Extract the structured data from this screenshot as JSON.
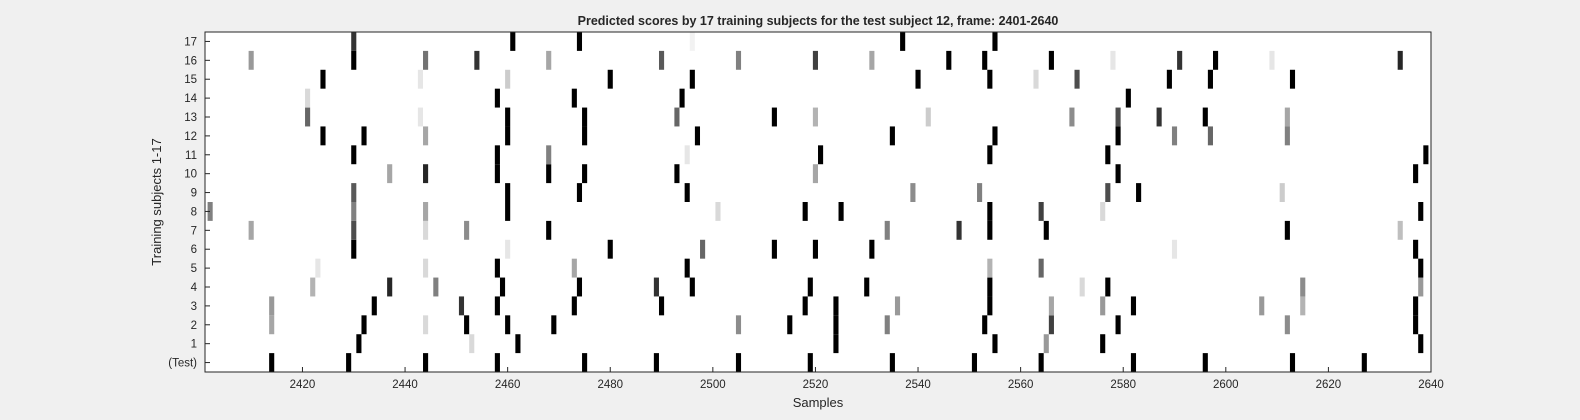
{
  "chart_data": {
    "type": "heatmap",
    "title": "Predicted scores by 17 training subjects for the test subject 12, frame: 2401-2640",
    "xlabel": "Samples",
    "ylabel": "Training subjects 1-17",
    "xlim": [
      2401,
      2640
    ],
    "x_ticks": [
      2420,
      2440,
      2460,
      2480,
      2500,
      2520,
      2540,
      2560,
      2580,
      2600,
      2620,
      2640
    ],
    "y_ticks": [
      "(Test)",
      "1",
      "2",
      "3",
      "4",
      "5",
      "6",
      "7",
      "8",
      "9",
      "10",
      "11",
      "12",
      "13",
      "14",
      "15",
      "16",
      "17"
    ],
    "grid": false,
    "colormap": "gray-inverted",
    "rows": [
      {
        "label": "(Test)",
        "events": [
          [
            2414,
            1
          ],
          [
            2429,
            1
          ],
          [
            2444,
            1
          ],
          [
            2458,
            1
          ],
          [
            2475,
            1
          ],
          [
            2489,
            1
          ],
          [
            2505,
            1
          ],
          [
            2519,
            1
          ],
          [
            2535,
            1
          ],
          [
            2551,
            1
          ],
          [
            2564,
            1
          ],
          [
            2582,
            1
          ],
          [
            2596,
            1
          ],
          [
            2613,
            1
          ],
          [
            2627,
            1
          ]
        ]
      },
      {
        "label": "1",
        "events": [
          [
            2431,
            1
          ],
          [
            2453,
            0.15
          ],
          [
            2462,
            1
          ],
          [
            2524,
            1
          ],
          [
            2555,
            1
          ],
          [
            2565,
            0.4
          ],
          [
            2576,
            1
          ],
          [
            2638,
            1
          ]
        ]
      },
      {
        "label": "2",
        "events": [
          [
            2414,
            0.35
          ],
          [
            2432,
            1
          ],
          [
            2444,
            0.15
          ],
          [
            2452,
            1
          ],
          [
            2460,
            1
          ],
          [
            2469,
            1
          ],
          [
            2505,
            0.45
          ],
          [
            2515,
            1
          ],
          [
            2524,
            1
          ],
          [
            2534,
            0.5
          ],
          [
            2553,
            1
          ],
          [
            2566,
            0.75
          ],
          [
            2579,
            1
          ],
          [
            2612,
            0.45
          ],
          [
            2637,
            1
          ]
        ]
      },
      {
        "label": "3",
        "events": [
          [
            2414,
            0.4
          ],
          [
            2434,
            1
          ],
          [
            2451,
            0.8
          ],
          [
            2458,
            1
          ],
          [
            2473,
            1
          ],
          [
            2490,
            1
          ],
          [
            2518,
            1
          ],
          [
            2524,
            1
          ],
          [
            2536,
            0.4
          ],
          [
            2554,
            1
          ],
          [
            2566,
            0.35
          ],
          [
            2576,
            0.4
          ],
          [
            2582,
            1
          ],
          [
            2607,
            0.4
          ],
          [
            2615,
            0.3
          ],
          [
            2637,
            1
          ]
        ]
      },
      {
        "label": "4",
        "events": [
          [
            2422,
            0.3
          ],
          [
            2437,
            0.85
          ],
          [
            2446,
            0.5
          ],
          [
            2459,
            1
          ],
          [
            2474,
            1
          ],
          [
            2489,
            0.8
          ],
          [
            2496,
            1
          ],
          [
            2519,
            1
          ],
          [
            2530,
            1
          ],
          [
            2554,
            1
          ],
          [
            2572,
            0.15
          ],
          [
            2577,
            1
          ],
          [
            2615,
            0.45
          ],
          [
            2638,
            0.4
          ]
        ]
      },
      {
        "label": "5",
        "events": [
          [
            2423,
            0.1
          ],
          [
            2444,
            0.15
          ],
          [
            2458,
            1
          ],
          [
            2473,
            0.35
          ],
          [
            2495,
            1
          ],
          [
            2554,
            0.3
          ],
          [
            2564,
            0.6
          ],
          [
            2638,
            1
          ]
        ]
      },
      {
        "label": "6",
        "events": [
          [
            2430,
            1
          ],
          [
            2460,
            0.1
          ],
          [
            2480,
            1
          ],
          [
            2498,
            0.6
          ],
          [
            2512,
            1
          ],
          [
            2520,
            1
          ],
          [
            2531,
            1
          ],
          [
            2590,
            0.1
          ],
          [
            2637,
            1
          ]
        ]
      },
      {
        "label": "7",
        "events": [
          [
            2410,
            0.35
          ],
          [
            2430,
            0.7
          ],
          [
            2444,
            0.15
          ],
          [
            2452,
            0.45
          ],
          [
            2468,
            1
          ],
          [
            2534,
            0.5
          ],
          [
            2548,
            0.8
          ],
          [
            2554,
            1
          ],
          [
            2565,
            1
          ],
          [
            2612,
            1
          ],
          [
            2634,
            0.25
          ]
        ]
      },
      {
        "label": "8",
        "events": [
          [
            2402,
            0.5
          ],
          [
            2430,
            0.5
          ],
          [
            2444,
            0.35
          ],
          [
            2460,
            1
          ],
          [
            2501,
            0.15
          ],
          [
            2518,
            1
          ],
          [
            2525,
            1
          ],
          [
            2554,
            1
          ],
          [
            2564,
            0.75
          ],
          [
            2576,
            0.15
          ],
          [
            2638,
            1
          ]
        ]
      },
      {
        "label": "9",
        "events": [
          [
            2430,
            0.65
          ],
          [
            2460,
            1
          ],
          [
            2474,
            1
          ],
          [
            2495,
            1
          ],
          [
            2539,
            0.45
          ],
          [
            2552,
            0.5
          ],
          [
            2577,
            0.7
          ],
          [
            2583,
            1
          ],
          [
            2611,
            0.2
          ]
        ]
      },
      {
        "label": "10",
        "events": [
          [
            2437,
            0.35
          ],
          [
            2444,
            0.85
          ],
          [
            2458,
            1
          ],
          [
            2468,
            1
          ],
          [
            2475,
            1
          ],
          [
            2493,
            1
          ],
          [
            2520,
            0.35
          ],
          [
            2579,
            1
          ],
          [
            2637,
            1
          ]
        ]
      },
      {
        "label": "11",
        "events": [
          [
            2430,
            1
          ],
          [
            2458,
            1
          ],
          [
            2468,
            0.5
          ],
          [
            2495,
            0.1
          ],
          [
            2521,
            1
          ],
          [
            2554,
            1
          ],
          [
            2577,
            1
          ],
          [
            2639,
            1
          ]
        ]
      },
      {
        "label": "12",
        "events": [
          [
            2424,
            1
          ],
          [
            2432,
            1
          ],
          [
            2444,
            0.35
          ],
          [
            2460,
            1
          ],
          [
            2475,
            1
          ],
          [
            2497,
            1
          ],
          [
            2535,
            1
          ],
          [
            2555,
            1
          ],
          [
            2579,
            1
          ],
          [
            2590,
            0.5
          ],
          [
            2597,
            0.6
          ],
          [
            2612,
            0.5
          ]
        ]
      },
      {
        "label": "13",
        "events": [
          [
            2421,
            0.6
          ],
          [
            2443,
            0.1
          ],
          [
            2460,
            1
          ],
          [
            2475,
            1
          ],
          [
            2493,
            0.6
          ],
          [
            2512,
            1
          ],
          [
            2520,
            0.3
          ],
          [
            2542,
            0.2
          ],
          [
            2570,
            0.45
          ],
          [
            2579,
            0.7
          ],
          [
            2587,
            0.8
          ],
          [
            2596,
            1
          ],
          [
            2612,
            0.35
          ]
        ]
      },
      {
        "label": "14",
        "events": [
          [
            2421,
            0.15
          ],
          [
            2458,
            1
          ],
          [
            2473,
            1
          ],
          [
            2494,
            1
          ],
          [
            2581,
            1
          ]
        ]
      },
      {
        "label": "15",
        "events": [
          [
            2424,
            1
          ],
          [
            2443,
            0.1
          ],
          [
            2460,
            0.2
          ],
          [
            2480,
            1
          ],
          [
            2496,
            1
          ],
          [
            2540,
            1
          ],
          [
            2554,
            1
          ],
          [
            2563,
            0.15
          ],
          [
            2571,
            0.7
          ],
          [
            2589,
            1
          ],
          [
            2597,
            1
          ],
          [
            2613,
            1
          ]
        ]
      },
      {
        "label": "16",
        "events": [
          [
            2410,
            0.4
          ],
          [
            2430,
            1
          ],
          [
            2444,
            0.55
          ],
          [
            2454,
            0.8
          ],
          [
            2468,
            0.35
          ],
          [
            2490,
            0.65
          ],
          [
            2505,
            0.5
          ],
          [
            2520,
            0.75
          ],
          [
            2531,
            0.35
          ],
          [
            2546,
            1
          ],
          [
            2553,
            1
          ],
          [
            2566,
            1
          ],
          [
            2578,
            0.1
          ],
          [
            2591,
            0.8
          ],
          [
            2598,
            1
          ],
          [
            2609,
            0.1
          ],
          [
            2634,
            0.85
          ]
        ]
      },
      {
        "label": "17",
        "events": [
          [
            2430,
            0.8
          ],
          [
            2461,
            1
          ],
          [
            2474,
            1
          ],
          [
            2496,
            0.05
          ],
          [
            2537,
            1
          ],
          [
            2555,
            1
          ]
        ]
      }
    ]
  }
}
